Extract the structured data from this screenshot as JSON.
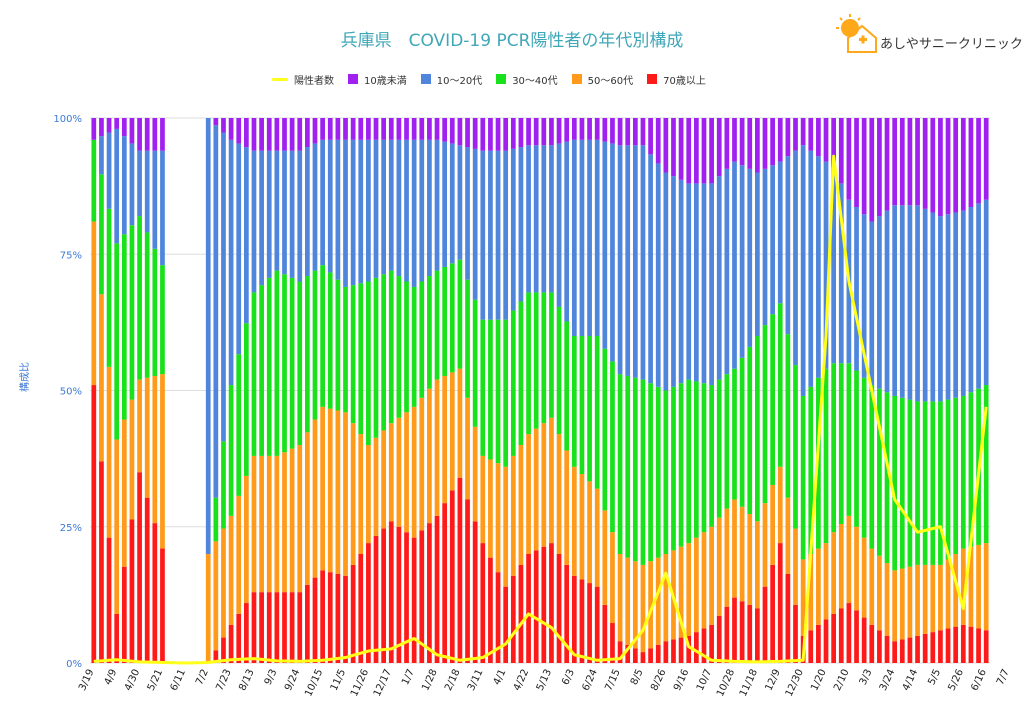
{
  "header": {
    "title": "兵庫県　COVID-19 PCR陽性者の年代別構成",
    "logo_text": "あしやサニークリニック",
    "logo_icon": "sun-house-icon"
  },
  "colors": {
    "line": "#ffff1a",
    "lt10": "#a020f0",
    "10_20": "#4f86dc",
    "30_40": "#19e21c",
    "50_60": "#ff9a1a",
    "ge70": "#ff1a1a",
    "grid": "#dddddd",
    "axis_text": "#3d7ad6"
  },
  "chart_data": {
    "type": "bar",
    "title": "兵庫県　COVID-19 PCR陽性者の年代別構成",
    "ylabel": "構成比",
    "ylim": [
      0,
      100
    ],
    "yticks": [
      "0%",
      "25%",
      "50%",
      "75%",
      "100%"
    ],
    "stacked": true,
    "legend_position": "top",
    "legend": [
      "陽性者数",
      "10歳未満",
      "10～20代",
      "30～40代",
      "50～60代",
      "70歳以上"
    ],
    "x_tick_labels": [
      "3/19",
      "4/9",
      "4/30",
      "5/21",
      "6/11",
      "7/2",
      "7/23",
      "8/13",
      "9/3",
      "9/24",
      "10/15",
      "11/5",
      "11/26",
      "12/17",
      "1/7",
      "1/28",
      "2/18",
      "3/11",
      "4/1",
      "4/22",
      "5/13",
      "6/3",
      "6/24",
      "7/15",
      "8/5",
      "8/26",
      "9/16",
      "10/7",
      "10/28",
      "11/18",
      "12/9",
      "12/30",
      "1/20",
      "2/10",
      "3/3",
      "3/24",
      "4/14",
      "5/5",
      "5/26",
      "6/16",
      "7/7"
    ],
    "keyframes": [
      {
        "w": 0,
        "a": 51,
        "b": 30,
        "c": 15,
        "d": 0,
        "line": 0.3
      },
      {
        "w": 3,
        "a": 9,
        "b": 32,
        "c": 36,
        "d": 21,
        "line": 0.6
      },
      {
        "w": 6,
        "a": 35,
        "b": 17,
        "c": 30,
        "d": 12,
        "line": 0.2
      },
      {
        "w": 9,
        "a": 21,
        "b": 32,
        "c": 20,
        "d": 21,
        "line": 0.1
      },
      {
        "w": 12,
        "a": null,
        "b": null,
        "c": null,
        "d": null,
        "line": 0
      },
      {
        "w": 15,
        "a": 0,
        "b": 20,
        "c": 0,
        "d": 80,
        "line": 0.1
      },
      {
        "w": 18,
        "a": 7,
        "b": 20,
        "c": 24,
        "d": 45,
        "line": 0.6
      },
      {
        "w": 21,
        "a": 13,
        "b": 25,
        "c": 30,
        "d": 26,
        "line": 0.8
      },
      {
        "w": 24,
        "a": 13,
        "b": 25,
        "c": 34,
        "d": 22,
        "line": 0.4
      },
      {
        "w": 27,
        "a": 13,
        "b": 27,
        "c": 30,
        "d": 24,
        "line": 0.3
      },
      {
        "w": 30,
        "a": 17,
        "b": 30,
        "c": 26,
        "d": 23,
        "line": 0.5
      },
      {
        "w": 33,
        "a": 16,
        "b": 30,
        "c": 23,
        "d": 27,
        "line": 1.0
      },
      {
        "w": 36,
        "a": 22,
        "b": 18,
        "c": 30,
        "d": 26,
        "line": 2.2
      },
      {
        "w": 39,
        "a": 26,
        "b": 18,
        "c": 28,
        "d": 24,
        "line": 2.6
      },
      {
        "w": 42,
        "a": 23,
        "b": 24,
        "c": 22,
        "d": 27,
        "line": 4.5
      },
      {
        "w": 45,
        "a": 27,
        "b": 25,
        "c": 20,
        "d": 24,
        "line": 1.5
      },
      {
        "w": 48,
        "a": 34,
        "b": 20,
        "c": 20,
        "d": 21,
        "line": 0.5
      },
      {
        "w": 51,
        "a": 22,
        "b": 16,
        "c": 25,
        "d": 31,
        "line": 1.0
      },
      {
        "w": 54,
        "a": 14,
        "b": 22,
        "c": 27,
        "d": 31,
        "line": 3.5
      },
      {
        "w": 57,
        "a": 20,
        "b": 22,
        "c": 26,
        "d": 27,
        "line": 9.0
      },
      {
        "w": 60,
        "a": 22,
        "b": 23,
        "c": 23,
        "d": 27,
        "line": 6.5
      },
      {
        "w": 63,
        "a": 16,
        "b": 20,
        "c": 24,
        "d": 36,
        "line": 1.5
      },
      {
        "w": 66,
        "a": 14,
        "b": 18,
        "c": 28,
        "d": 36,
        "line": 0.5
      },
      {
        "w": 69,
        "a": 4,
        "b": 16,
        "c": 33,
        "d": 42,
        "line": 0.8
      },
      {
        "w": 72,
        "a": 2,
        "b": 16,
        "c": 34,
        "d": 43,
        "line": 6.0
      },
      {
        "w": 75,
        "a": 4,
        "b": 16,
        "c": 30,
        "d": 40,
        "line": 16.5
      },
      {
        "w": 78,
        "a": 5,
        "b": 17,
        "c": 30,
        "d": 36,
        "line": 3.0
      },
      {
        "w": 81,
        "a": 7,
        "b": 18,
        "c": 26,
        "d": 37,
        "line": 0.5
      },
      {
        "w": 84,
        "a": 12,
        "b": 18,
        "c": 24,
        "d": 38,
        "line": 0.3
      },
      {
        "w": 87,
        "a": 10,
        "b": 16,
        "c": 34,
        "d": 30,
        "line": 0.2
      },
      {
        "w": 90,
        "a": 22,
        "b": 14,
        "c": 30,
        "d": 26,
        "line": 0.3
      },
      {
        "w": 93,
        "a": 5,
        "b": 14,
        "c": 30,
        "d": 46,
        "line": 0.5
      },
      {
        "w": 96,
        "a": 8,
        "b": 14,
        "c": 32,
        "d": 38,
        "line": 60.0
      },
      {
        "w": 97,
        "a": 9,
        "b": 15,
        "c": 31,
        "d": 36,
        "line": 93.0
      },
      {
        "w": 99,
        "a": 11,
        "b": 16,
        "c": 28,
        "d": 30,
        "line": 70.0
      },
      {
        "w": 102,
        "a": 7,
        "b": 14,
        "c": 30,
        "d": 30,
        "line": 50.0
      },
      {
        "w": 105,
        "a": 4,
        "b": 13,
        "c": 32,
        "d": 35,
        "line": 30.0
      },
      {
        "w": 108,
        "a": 5,
        "b": 13,
        "c": 30,
        "d": 36,
        "line": 24.0
      },
      {
        "w": 111,
        "a": 6,
        "b": 12,
        "c": 30,
        "d": 34,
        "line": 25.0
      },
      {
        "w": 114,
        "a": 7,
        "b": 14,
        "c": 28,
        "d": 34,
        "line": 10.0
      },
      {
        "w": 117,
        "a": 6,
        "b": 16,
        "c": 29,
        "d": 34,
        "line": 47.0
      }
    ]
  }
}
